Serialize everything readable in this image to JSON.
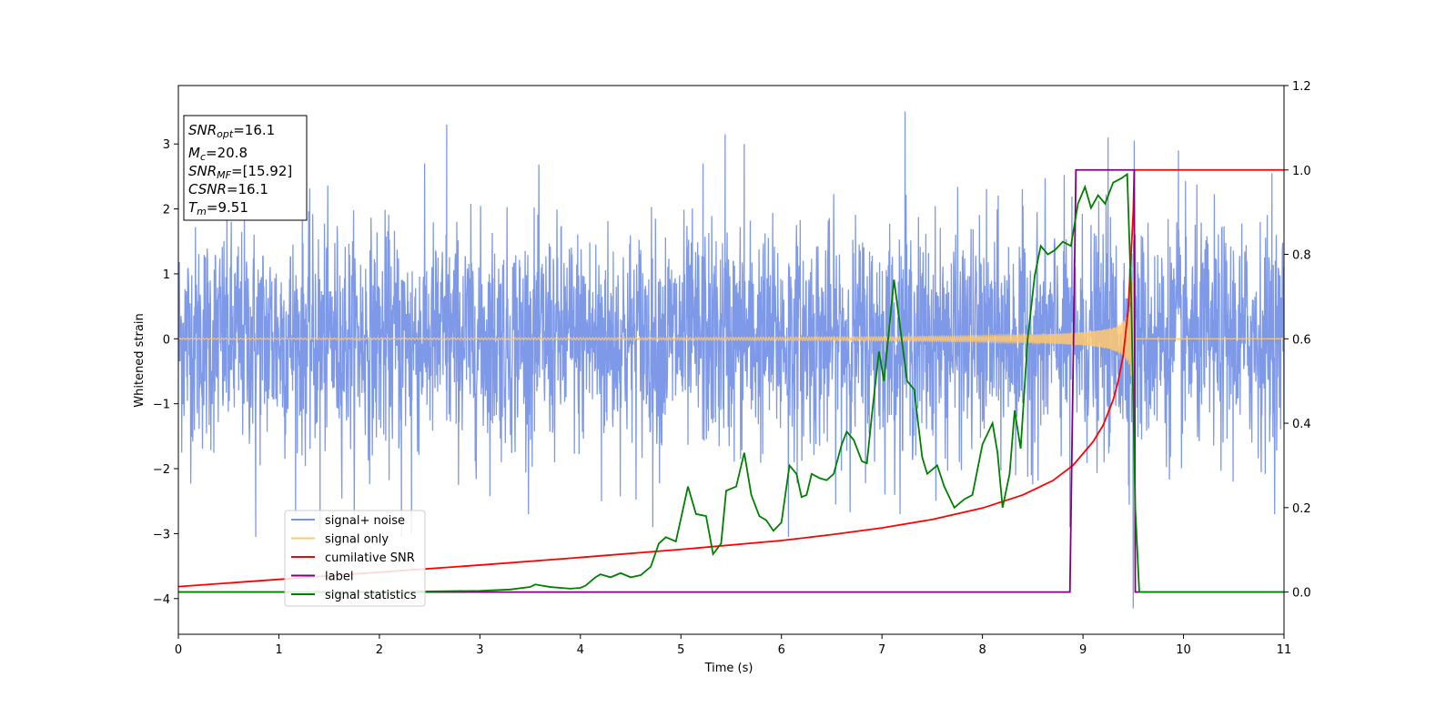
{
  "chart_data": {
    "type": "line",
    "xlabel": "Time (s)",
    "ylabel": "Whitened strain",
    "xlim": [
      0,
      11
    ],
    "ylim": [
      -4.55,
      3.9
    ],
    "y2lim": [
      -0.1,
      1.2
    ],
    "xticks": [
      "0",
      "1",
      "2",
      "3",
      "4",
      "5",
      "6",
      "7",
      "8",
      "9",
      "10",
      "11"
    ],
    "yticks": [
      "−4",
      "−3",
      "−2",
      "−1",
      "0",
      "1",
      "2",
      "3"
    ],
    "y2ticks": [
      "0.0",
      "0.2",
      "0.4",
      "0.6",
      "0.8",
      "1.0",
      "1.2"
    ],
    "grid": false,
    "legend": {
      "placement": "lower-left",
      "entries": [
        {
          "label": "signal+ noise",
          "color": "#7893e8"
        },
        {
          "label": "signal only",
          "color": "#ffc870"
        },
        {
          "label": "cumilative SNR",
          "color": "#ff0000"
        },
        {
          "label": "label",
          "color": "#800080"
        },
        {
          "label": "signal statistics",
          "color": "#008000"
        }
      ]
    },
    "info_box": {
      "snr_opt": {
        "name": "SNR",
        "sub": "opt",
        "value": "=16.1"
      },
      "mc": {
        "name": "M",
        "sub": "c",
        "value": "=20.8"
      },
      "snr_mf": {
        "name": "SNR",
        "sub": "MF",
        "value": "=[15.92]"
      },
      "csnr": {
        "name": "CSNR",
        "sub": "",
        "value": "=16.1"
      },
      "tm": {
        "name": "T",
        "sub": "m",
        "value": "=9.51"
      }
    },
    "series": [
      {
        "name": "signal+ noise",
        "axis": "left",
        "color": "#7893e8",
        "noise_std": 0.85,
        "points": [
          [
            0.77,
            -3.05
          ],
          [
            1.41,
            -2.95
          ],
          [
            2.22,
            -3.05
          ],
          [
            2.32,
            -3.0
          ],
          [
            2.67,
            3.3
          ],
          [
            4.21,
            -2.5
          ],
          [
            4.72,
            -2.9
          ],
          [
            5.22,
            2.7
          ],
          [
            5.44,
            3.15
          ],
          [
            5.63,
            3.0
          ],
          [
            6.07,
            -3.05
          ],
          [
            7.23,
            3.5
          ],
          [
            8.87,
            -2.9
          ],
          [
            9.25,
            3.1
          ],
          [
            9.5,
            -4.15
          ],
          [
            9.51,
            3.05
          ],
          [
            9.95,
            2.9
          ],
          [
            10.88,
            2.55
          ]
        ]
      },
      {
        "name": "signal only",
        "axis": "left",
        "color": "#ffc870",
        "tm": 9.51,
        "peak_amplitude": 1.25,
        "min_amplitude": 0.02
      },
      {
        "name": "cumilative SNR",
        "axis": "right",
        "color": "#ff0000",
        "x": [
          0,
          1,
          2,
          3,
          4,
          5,
          6,
          6.5,
          7,
          7.5,
          8,
          8.4,
          8.7,
          8.9,
          9.1,
          9.2,
          9.3,
          9.35,
          9.4,
          9.45,
          9.5,
          9.51,
          11
        ],
        "y": [
          0.013,
          0.03,
          0.047,
          0.064,
          0.082,
          0.101,
          0.122,
          0.136,
          0.152,
          0.172,
          0.199,
          0.23,
          0.264,
          0.3,
          0.356,
          0.395,
          0.455,
          0.5,
          0.56,
          0.67,
          0.9,
          1.0,
          1.0
        ]
      },
      {
        "name": "label",
        "axis": "right",
        "color": "#800080",
        "x": [
          0,
          8.87,
          8.93,
          9.51,
          9.52,
          11
        ],
        "y": [
          0,
          0,
          1,
          1,
          0,
          0
        ]
      },
      {
        "name": "signal statistics",
        "axis": "right",
        "color": "#008000",
        "x": [
          0,
          1,
          2,
          3,
          3.3,
          3.5,
          3.55,
          3.7,
          3.9,
          4.0,
          4.05,
          4.15,
          4.2,
          4.3,
          4.4,
          4.5,
          4.6,
          4.7,
          4.78,
          4.85,
          4.95,
          5.07,
          5.15,
          5.25,
          5.32,
          5.4,
          5.45,
          5.55,
          5.63,
          5.7,
          5.78,
          5.85,
          5.92,
          6.0,
          6.08,
          6.15,
          6.2,
          6.25,
          6.3,
          6.38,
          6.45,
          6.52,
          6.6,
          6.65,
          6.72,
          6.8,
          6.85,
          6.9,
          6.97,
          7.02,
          7.12,
          7.25,
          7.32,
          7.4,
          7.45,
          7.55,
          7.62,
          7.72,
          7.82,
          7.9,
          8.0,
          8.1,
          8.15,
          8.2,
          8.27,
          8.32,
          8.38,
          8.45,
          8.52,
          8.58,
          8.65,
          8.72,
          8.8,
          8.88,
          8.95,
          9.02,
          9.08,
          9.15,
          9.22,
          9.3,
          9.38,
          9.44,
          9.48,
          9.52,
          9.56,
          9.58,
          9.7,
          11
        ],
        "y": [
          0,
          0,
          0,
          0.003,
          0.006,
          0.012,
          0.018,
          0.012,
          0.008,
          0.01,
          0.015,
          0.035,
          0.042,
          0.035,
          0.045,
          0.035,
          0.04,
          0.06,
          0.115,
          0.13,
          0.12,
          0.25,
          0.185,
          0.18,
          0.09,
          0.115,
          0.24,
          0.25,
          0.33,
          0.23,
          0.18,
          0.17,
          0.145,
          0.165,
          0.3,
          0.28,
          0.225,
          0.23,
          0.28,
          0.27,
          0.265,
          0.28,
          0.35,
          0.38,
          0.36,
          0.31,
          0.305,
          0.42,
          0.57,
          0.5,
          0.74,
          0.5,
          0.48,
          0.32,
          0.28,
          0.3,
          0.25,
          0.2,
          0.22,
          0.23,
          0.35,
          0.4,
          0.33,
          0.2,
          0.28,
          0.43,
          0.34,
          0.6,
          0.75,
          0.82,
          0.8,
          0.81,
          0.83,
          0.82,
          0.92,
          0.96,
          0.91,
          0.94,
          0.92,
          0.97,
          0.98,
          0.99,
          0.7,
          0.2,
          0.0,
          0.0,
          0.0,
          0.0
        ]
      }
    ]
  }
}
